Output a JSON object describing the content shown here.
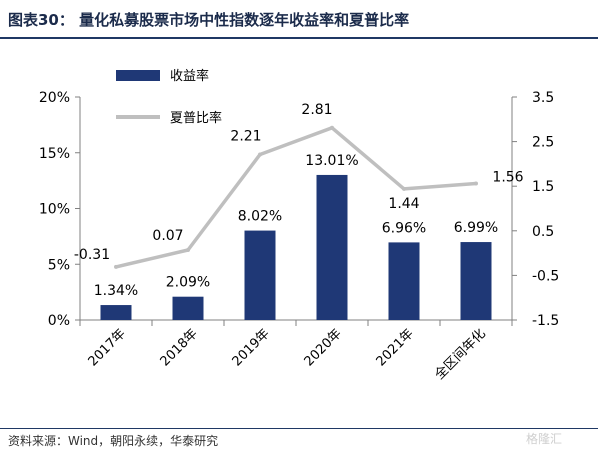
{
  "header": {
    "title": "图表30：  量化私募股票市场中性指数逐年收益率和夏普比率"
  },
  "footer": {
    "source": "资料来源：Wind，朝阳永续，华泰研究",
    "watermark": "格隆汇"
  },
  "colors": {
    "bar": "#1f3876",
    "line": "#bfbfbf",
    "axis": "#808080",
    "text": "#000000"
  },
  "chart_data": {
    "type": "bar",
    "categories": [
      "2017年",
      "2018年",
      "2019年",
      "2020年",
      "2021年",
      "全区间年化"
    ],
    "series": [
      {
        "name": "收益率",
        "type": "bar",
        "axis": "left",
        "values": [
          1.34,
          2.09,
          8.02,
          13.01,
          6.96,
          6.99
        ],
        "labels": [
          "1.34%",
          "2.09%",
          "8.02%",
          "13.01%",
          "6.96%",
          "6.99%"
        ]
      },
      {
        "name": "夏普比率",
        "type": "line",
        "axis": "right",
        "values": [
          -0.31,
          0.07,
          2.21,
          2.81,
          1.44,
          1.56
        ],
        "labels": [
          "-0.31",
          "0.07",
          "2.21",
          "2.81",
          "1.44",
          "1.56"
        ]
      }
    ],
    "y_left": {
      "range": [
        0,
        20
      ],
      "ticks": [
        "0%",
        "5%",
        "10%",
        "15%",
        "20%"
      ]
    },
    "y_right": {
      "range": [
        -1.5,
        3.5
      ],
      "ticks": [
        "-1.5",
        "-0.5",
        "0.5",
        "1.5",
        "2.5",
        "3.5"
      ]
    },
    "legend_position": "top-left",
    "grid": false
  }
}
